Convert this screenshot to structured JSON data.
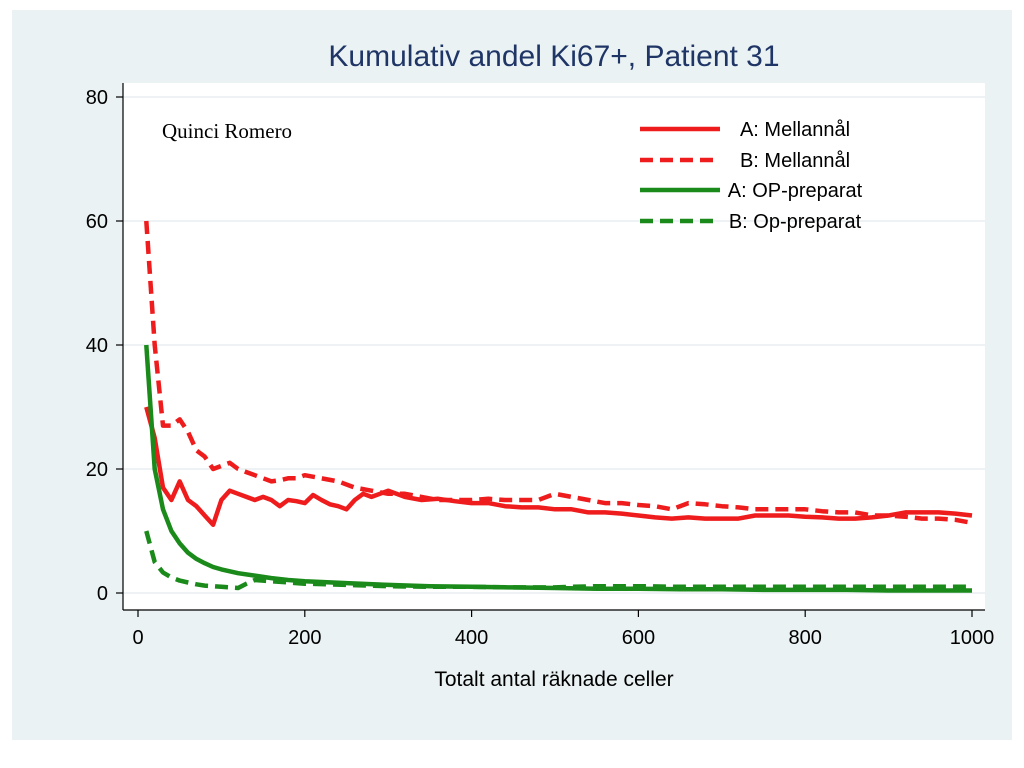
{
  "chart_data": {
    "type": "line",
    "title": "Kumulativ andel Ki67+, Patient 31",
    "xlabel": "Totalt antal räknade celler",
    "ylabel": "",
    "xlim": [
      0,
      1000
    ],
    "ylim": [
      0,
      80
    ],
    "xticks": [
      0,
      200,
      400,
      600,
      800,
      1000
    ],
    "yticks": [
      0,
      20,
      40,
      60,
      80
    ],
    "grid": true,
    "legend_position": "top-right",
    "annotation": "Quinci Romero",
    "colors": {
      "red": "#ee1c1c",
      "green": "#1a8a1a",
      "title": "#1f3566",
      "frame_bg": "#eaf2f3"
    },
    "series": [
      {
        "name": "A: Mellannål",
        "color": "#ee1c1c",
        "dash": "solid",
        "x": [
          10,
          20,
          30,
          40,
          50,
          60,
          70,
          80,
          90,
          100,
          110,
          120,
          130,
          140,
          150,
          160,
          170,
          180,
          190,
          200,
          210,
          220,
          230,
          240,
          250,
          260,
          270,
          280,
          290,
          300,
          320,
          340,
          360,
          380,
          400,
          420,
          440,
          460,
          480,
          500,
          520,
          540,
          560,
          580,
          600,
          620,
          640,
          660,
          680,
          700,
          720,
          740,
          760,
          780,
          800,
          820,
          840,
          860,
          880,
          900,
          920,
          940,
          960,
          980,
          1000
        ],
        "y": [
          30,
          25,
          17,
          15,
          18,
          15,
          14,
          12.5,
          11,
          15,
          16.5,
          16,
          15.5,
          15,
          15.5,
          15,
          14,
          15,
          14.8,
          14.5,
          15.8,
          15,
          14.3,
          14,
          13.5,
          15,
          16,
          15.5,
          16,
          16.5,
          15.5,
          15,
          15.2,
          14.8,
          14.5,
          14.5,
          14,
          13.8,
          13.8,
          13.5,
          13.5,
          13,
          13,
          12.8,
          12.5,
          12.2,
          12,
          12.2,
          12,
          12,
          12,
          12.5,
          12.5,
          12.5,
          12.3,
          12.2,
          12,
          12,
          12.2,
          12.5,
          13,
          13,
          13,
          12.8,
          12.5
        ]
      },
      {
        "name": "B: Mellannål",
        "color": "#ee1c1c",
        "dash": "dashed",
        "x": [
          10,
          20,
          30,
          40,
          50,
          60,
          70,
          80,
          90,
          100,
          110,
          120,
          130,
          140,
          150,
          160,
          170,
          180,
          190,
          200,
          220,
          240,
          260,
          280,
          300,
          320,
          340,
          360,
          380,
          400,
          420,
          440,
          460,
          480,
          500,
          520,
          540,
          560,
          580,
          600,
          620,
          640,
          660,
          680,
          700,
          720,
          740,
          760,
          780,
          800,
          820,
          840,
          860,
          880,
          900,
          920,
          940,
          960,
          980,
          1000
        ],
        "y": [
          60,
          40,
          27,
          27,
          28,
          26,
          23,
          22,
          20,
          20.5,
          21,
          20,
          19.5,
          19,
          18.5,
          18,
          18.2,
          18.5,
          18.5,
          19,
          18.5,
          18,
          17,
          16.5,
          16,
          16,
          15.5,
          15,
          15,
          15,
          15.2,
          15,
          15,
          15,
          16,
          15.5,
          15,
          14.5,
          14.5,
          14.2,
          14,
          13.5,
          14.5,
          14.3,
          14,
          13.8,
          13.5,
          13.5,
          13.5,
          13.5,
          13.2,
          13,
          13,
          12.5,
          12.5,
          12.3,
          12,
          12,
          11.8,
          11.3
        ]
      },
      {
        "name": "A: OP-preparat",
        "color": "#1a8a1a",
        "dash": "solid",
        "x": [
          10,
          20,
          30,
          40,
          50,
          60,
          70,
          80,
          90,
          100,
          120,
          140,
          160,
          180,
          200,
          250,
          300,
          350,
          400,
          450,
          500,
          550,
          600,
          650,
          700,
          750,
          800,
          850,
          900,
          950,
          1000
        ],
        "y": [
          40,
          20,
          13.5,
          10,
          8,
          6.5,
          5.5,
          4.8,
          4.2,
          3.8,
          3.2,
          2.8,
          2.4,
          2.1,
          1.9,
          1.6,
          1.3,
          1.1,
          1,
          0.9,
          0.8,
          0.7,
          0.7,
          0.6,
          0.6,
          0.5,
          0.5,
          0.5,
          0.4,
          0.4,
          0.4
        ]
      },
      {
        "name": "B: Op-preparat",
        "color": "#1a8a1a",
        "dash": "dashed",
        "x": [
          10,
          20,
          30,
          40,
          50,
          60,
          70,
          80,
          90,
          100,
          110,
          120,
          130,
          140,
          150,
          200,
          250,
          300,
          350,
          400,
          450,
          500,
          520,
          550,
          600,
          650,
          700,
          750,
          800,
          850,
          900,
          950,
          1000
        ],
        "y": [
          10,
          5,
          3.3,
          2.5,
          2,
          1.7,
          1.4,
          1.2,
          1.1,
          1,
          0.9,
          0.8,
          1.5,
          2.1,
          2,
          1.5,
          1.3,
          1.1,
          1,
          1,
          0.9,
          0.9,
          1,
          1.1,
          1.1,
          1,
          1,
          1,
          1,
          1,
          1,
          1,
          1
        ]
      }
    ]
  }
}
